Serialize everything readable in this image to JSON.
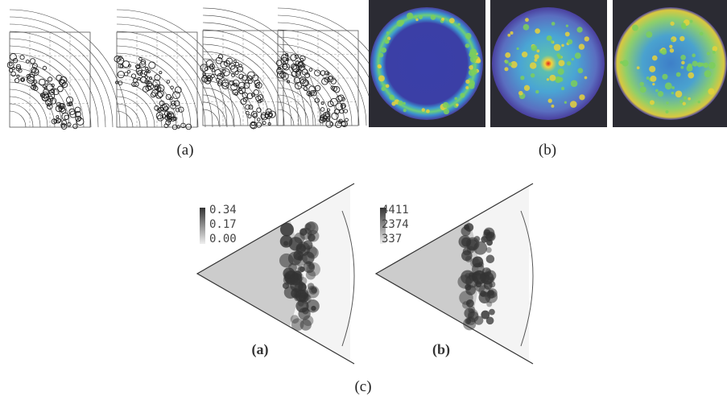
{
  "panels": [
    {
      "label": "(a)"
    },
    {
      "label": "(b)"
    },
    {
      "label": "(c)",
      "subpanels": [
        {
          "label": "(a)",
          "colorbar": [
            "0.34",
            "0.17",
            "0.00"
          ]
        },
        {
          "label": "(b)",
          "colorbar": [
            "4411",
            "2374",
            "337"
          ]
        }
      ]
    }
  ]
}
